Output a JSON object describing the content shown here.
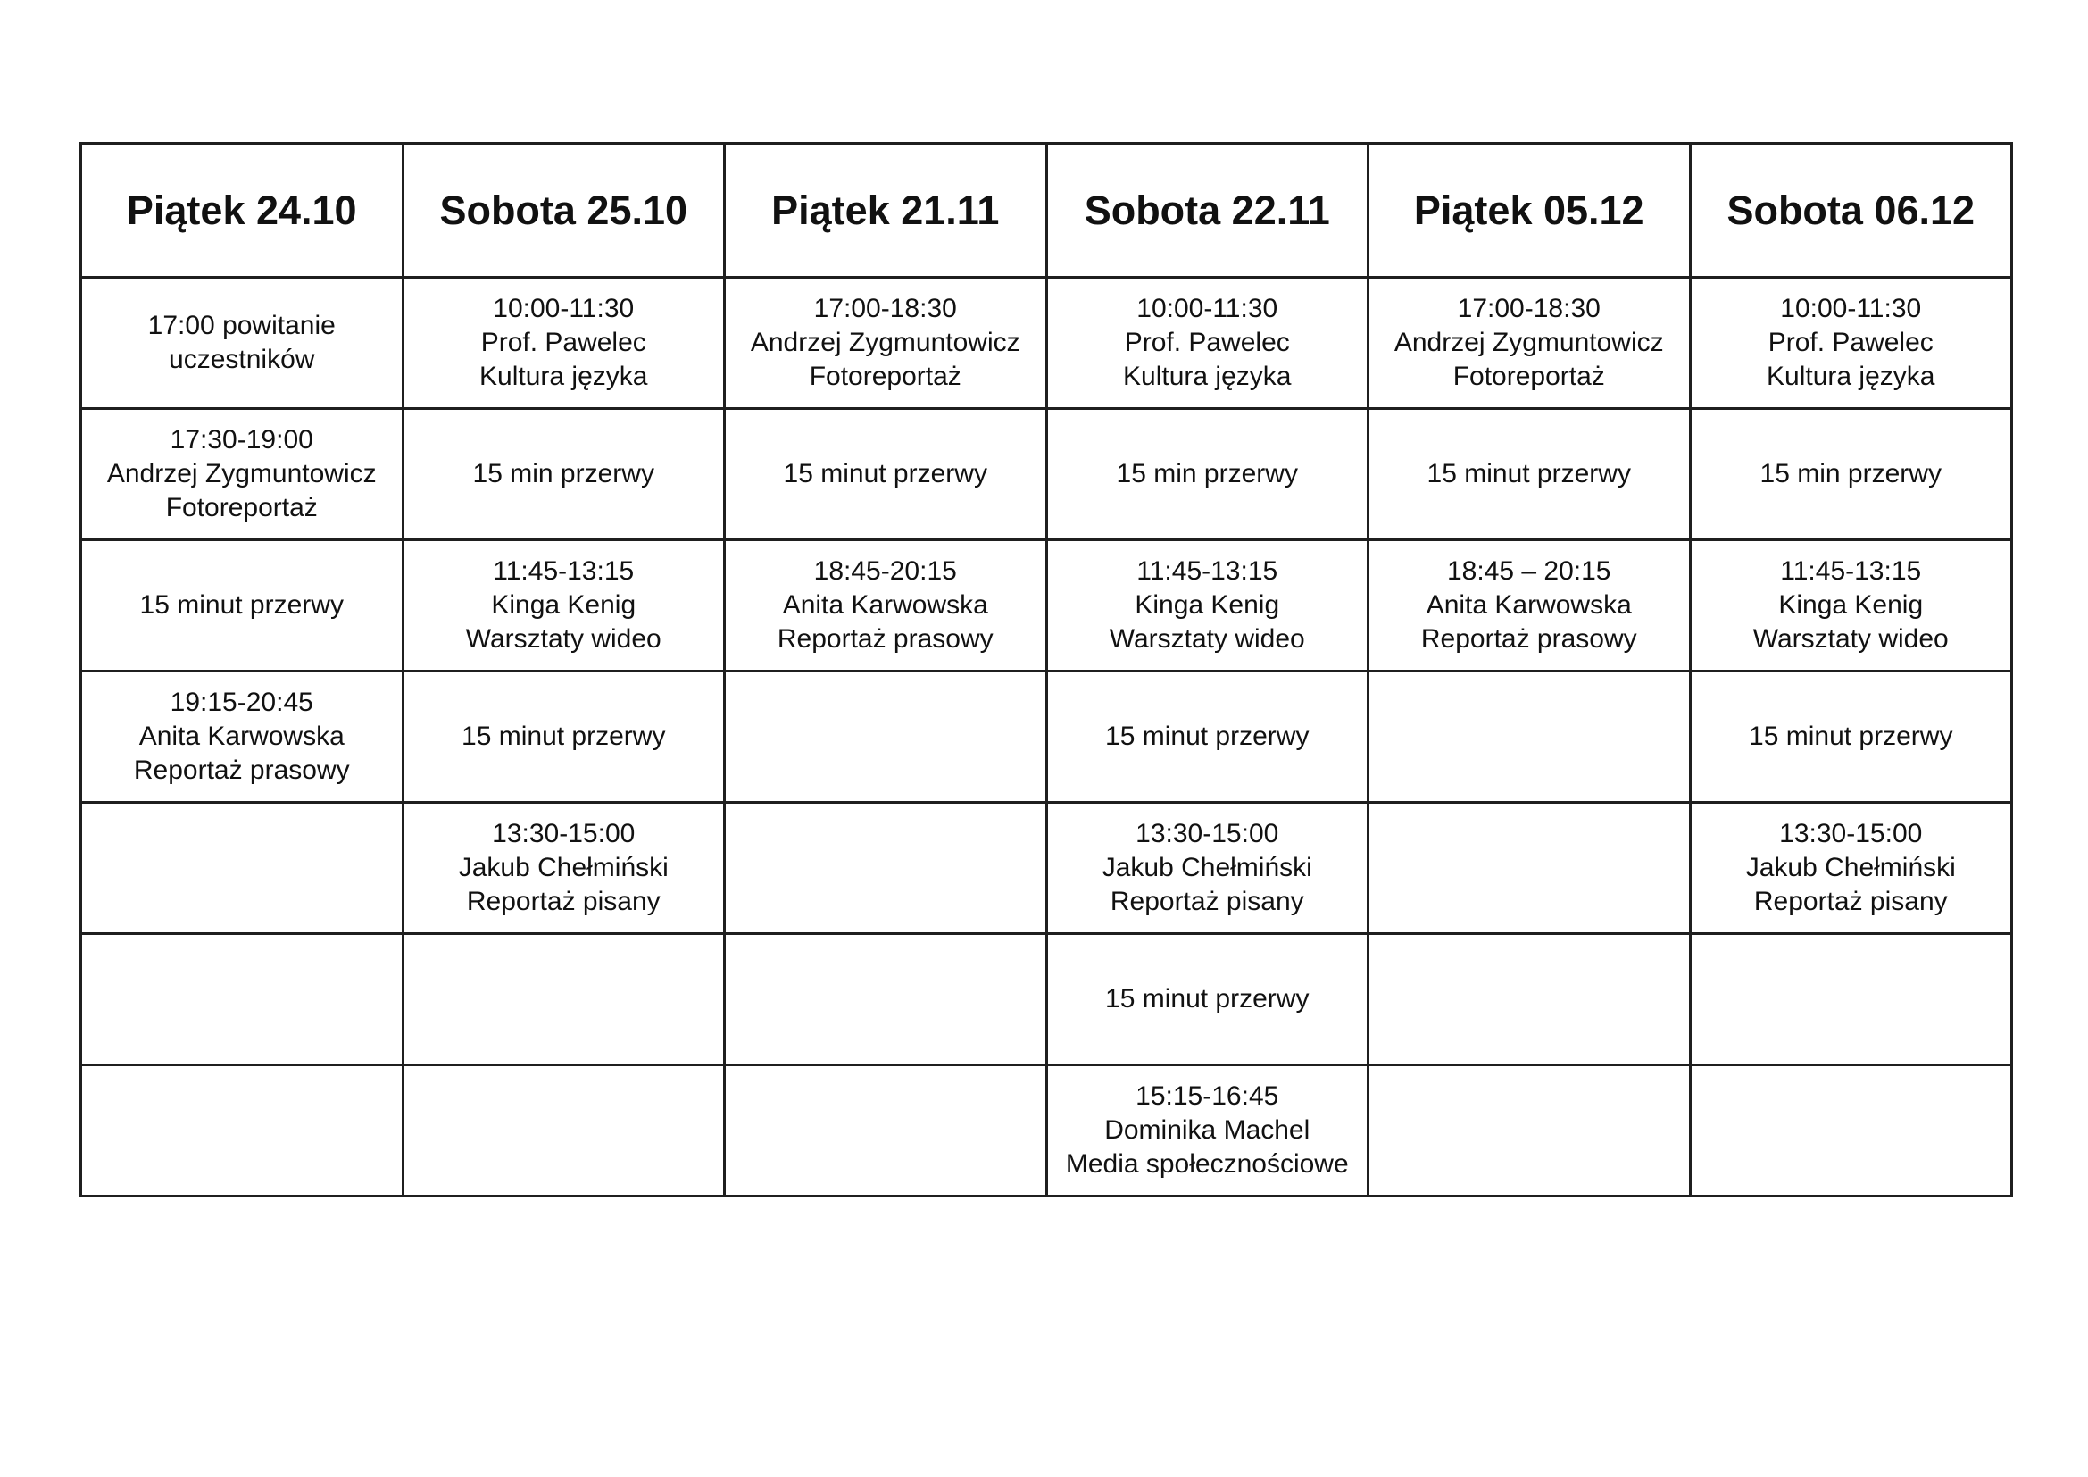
{
  "table": {
    "headers": [
      "Piątek 24.10",
      "Sobota 25.10",
      "Piątek 21.11",
      "Sobota 22.11",
      "Piątek 05.12",
      "Sobota 06.12"
    ],
    "rows": [
      [
        [
          "17:00 powitanie",
          "uczestników"
        ],
        [
          "10:00-11:30",
          "Prof. Pawelec",
          "Kultura języka"
        ],
        [
          "17:00-18:30",
          "Andrzej Zygmuntowicz",
          "Fotoreportaż"
        ],
        [
          "10:00-11:30",
          "Prof. Pawelec",
          "Kultura języka"
        ],
        [
          "17:00-18:30",
          "Andrzej Zygmuntowicz",
          "Fotoreportaż"
        ],
        [
          "10:00-11:30",
          "Prof. Pawelec",
          "Kultura języka"
        ]
      ],
      [
        [
          "17:30-19:00",
          "Andrzej Zygmuntowicz",
          "Fotoreportaż"
        ],
        [
          "15 min przerwy"
        ],
        [
          "15 minut przerwy"
        ],
        [
          "15 min przerwy"
        ],
        [
          "15 minut przerwy"
        ],
        [
          "15 min przerwy"
        ]
      ],
      [
        [
          "15 minut przerwy"
        ],
        [
          "11:45-13:15",
          "Kinga Kenig",
          "Warsztaty wideo"
        ],
        [
          "18:45-20:15",
          "Anita Karwowska",
          "Reportaż prasowy"
        ],
        [
          "11:45-13:15",
          "Kinga Kenig",
          "Warsztaty wideo"
        ],
        [
          "18:45 – 20:15",
          "Anita Karwowska",
          "Reportaż prasowy"
        ],
        [
          "11:45-13:15",
          "Kinga Kenig",
          "Warsztaty wideo"
        ]
      ],
      [
        [
          "19:15-20:45",
          "Anita Karwowska",
          "Reportaż prasowy"
        ],
        [
          "15 minut przerwy"
        ],
        [],
        [
          "15 minut przerwy"
        ],
        [],
        [
          "15 minut przerwy"
        ]
      ],
      [
        [],
        [
          "13:30-15:00",
          "Jakub Chełmiński",
          "Reportaż pisany"
        ],
        [],
        [
          "13:30-15:00",
          "Jakub Chełmiński",
          "Reportaż pisany"
        ],
        [],
        [
          "13:30-15:00",
          "Jakub Chełmiński",
          "Reportaż pisany"
        ]
      ],
      [
        [],
        [],
        [],
        [
          "15 minut przerwy"
        ],
        [],
        []
      ],
      [
        [],
        [],
        [],
        [
          "15:15-16:45",
          "Dominika Machel",
          "Media społecznościowe"
        ],
        [],
        []
      ]
    ]
  }
}
